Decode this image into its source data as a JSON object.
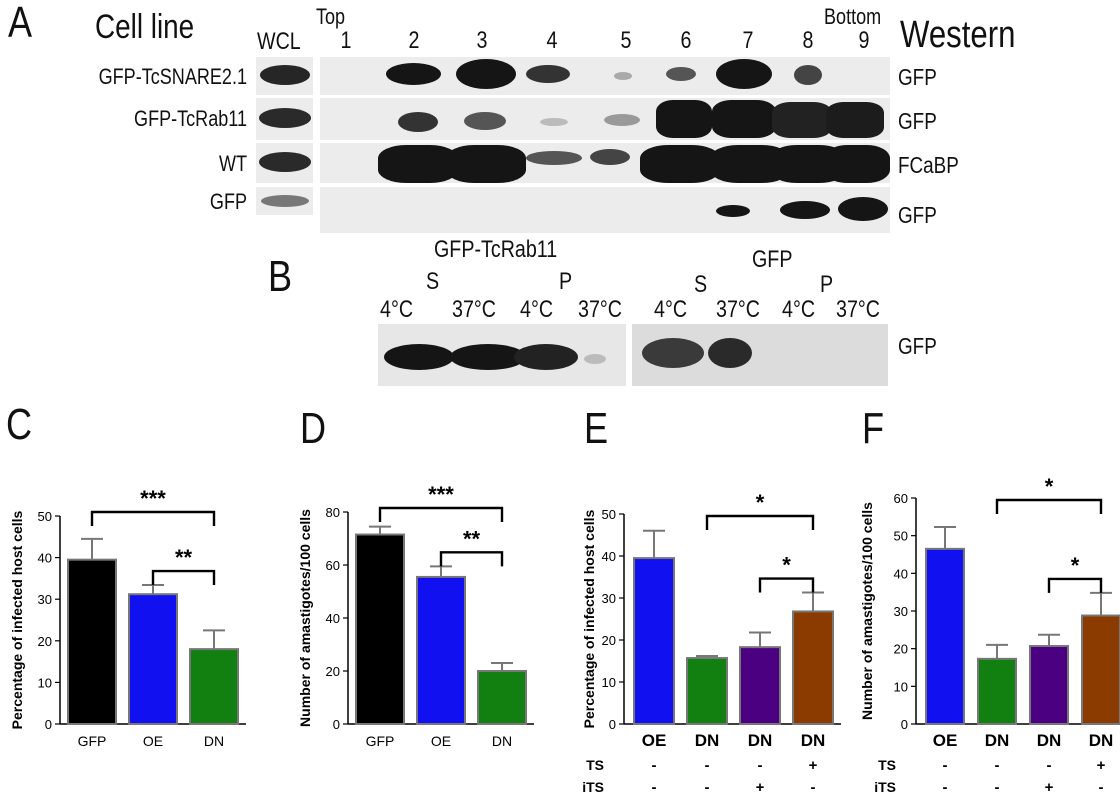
{
  "panel_a": {
    "letter": "A",
    "cell_line_header": "Cell line",
    "wcl_header": "WCL",
    "western_header": "Western",
    "top_label": "Top",
    "bottom_label": "Bottom",
    "fractions": [
      "1",
      "2",
      "3",
      "4",
      "5",
      "6",
      "7",
      "8",
      "9"
    ],
    "rows": [
      {
        "cell_line": "GFP-TcSNARE2.1",
        "antibody": "GFP"
      },
      {
        "cell_line": "GFP-TcRab11",
        "antibody": "GFP"
      },
      {
        "cell_line": "WT",
        "antibody": "FCaBP"
      },
      {
        "cell_line": "GFP",
        "antibody": "GFP"
      }
    ]
  },
  "panel_b": {
    "letter": "B",
    "group1": "GFP-TcRab11",
    "group2": "GFP",
    "s_label": "S",
    "p_label": "P",
    "temps": [
      "4°C",
      "37°C",
      "4°C",
      "37°C"
    ],
    "antibody": "GFP"
  },
  "chart_data": [
    {
      "panel": "C",
      "type": "bar",
      "categories": [
        "GFP",
        "OE",
        "DN"
      ],
      "values": [
        39.5,
        31.2,
        18.0
      ],
      "errors": [
        5.0,
        2.2,
        4.5
      ],
      "colors": [
        "#000000",
        "#1010f0",
        "#118011"
      ],
      "ylabel": "Percentage of infected host cells",
      "ylim": [
        0,
        50
      ],
      "yticks": [
        0,
        10,
        20,
        30,
        40,
        50
      ],
      "significance": [
        {
          "from": 0,
          "to": 2,
          "label": "***"
        },
        {
          "from": 1,
          "to": 2,
          "label": "**"
        }
      ]
    },
    {
      "panel": "D",
      "type": "bar",
      "categories": [
        "GFP",
        "OE",
        "DN"
      ],
      "values": [
        71.5,
        55.5,
        20.0
      ],
      "errors": [
        3.0,
        4.0,
        3.0
      ],
      "colors": [
        "#000000",
        "#1010f0",
        "#118011"
      ],
      "ylabel": "Number of amastigotes/100 cells",
      "ylim": [
        0,
        80
      ],
      "yticks": [
        0,
        20,
        40,
        60,
        80
      ],
      "significance": [
        {
          "from": 0,
          "to": 2,
          "label": "***"
        },
        {
          "from": 1,
          "to": 2,
          "label": "**"
        }
      ]
    },
    {
      "panel": "E",
      "type": "bar",
      "categories": [
        "OE",
        "DN",
        "DN",
        "DN"
      ],
      "values": [
        39.5,
        15.7,
        18.3,
        26.8
      ],
      "errors": [
        6.5,
        0.5,
        3.5,
        4.5
      ],
      "colors": [
        "#1010f0",
        "#118011",
        "#4b0082",
        "#8b3a00"
      ],
      "ylabel": "Percentage of infected host cells",
      "ylim": [
        0,
        50
      ],
      "yticks": [
        0,
        10,
        20,
        30,
        40,
        50
      ],
      "treatments": [
        {
          "name": "TS",
          "values": [
            "-",
            "-",
            "-",
            "+"
          ]
        },
        {
          "name": "iTS",
          "values": [
            "-",
            "-",
            "+",
            "-"
          ]
        }
      ],
      "significance": [
        {
          "from": 1,
          "to": 3,
          "label": "*"
        },
        {
          "from": 2,
          "to": 3,
          "label": "*"
        }
      ]
    },
    {
      "panel": "F",
      "type": "bar",
      "categories": [
        "OE",
        "DN",
        "DN",
        "DN"
      ],
      "values": [
        46.5,
        17.3,
        20.7,
        28.8
      ],
      "errors": [
        5.8,
        3.7,
        3.0,
        6.0
      ],
      "colors": [
        "#1010f0",
        "#118011",
        "#4b0082",
        "#8b3a00"
      ],
      "ylabel": "Number of amastigotes/100 cells",
      "ylim": [
        0,
        60
      ],
      "yticks": [
        0,
        10,
        20,
        30,
        40,
        50,
        60
      ],
      "treatments": [
        {
          "name": "TS",
          "values": [
            "-",
            "-",
            "-",
            "+"
          ]
        },
        {
          "name": "iTS",
          "values": [
            "-",
            "-",
            "+",
            "-"
          ]
        }
      ],
      "significance": [
        {
          "from": 1,
          "to": 3,
          "label": "*"
        },
        {
          "from": 2,
          "to": 3,
          "label": "*"
        }
      ]
    }
  ]
}
